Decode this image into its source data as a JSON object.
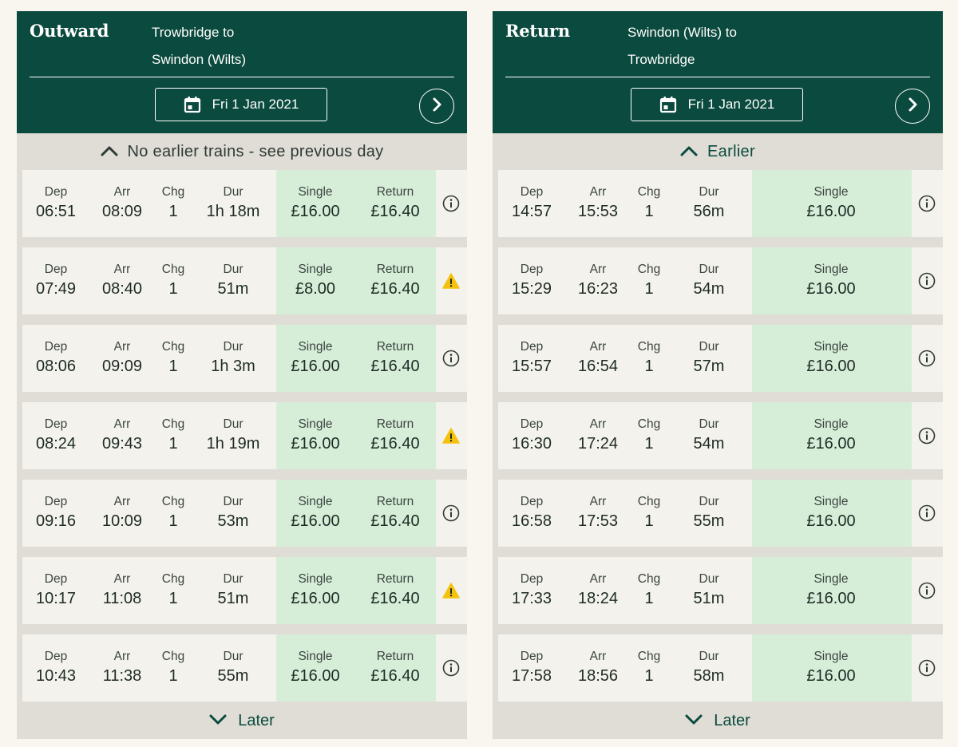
{
  "outward": {
    "direction": "Outward",
    "route_line1": "Trowbridge to",
    "route_line2": "Swindon (Wilts)",
    "date": "Fri 1 Jan 2021",
    "earlier_text": "No earlier trains - see previous day",
    "later_text": "Later",
    "journeys": [
      {
        "dep_label": "Dep",
        "dep": "06:51",
        "arr_label": "Arr",
        "arr": "08:09",
        "chg_label": "Chg",
        "chg": "1",
        "dur_label": "Dur",
        "dur": "1h 18m",
        "single_label": "Single",
        "single": "£16.00",
        "return_label": "Return",
        "return": "£16.40",
        "icon": "info-icon"
      },
      {
        "dep_label": "Dep",
        "dep": "07:49",
        "arr_label": "Arr",
        "arr": "08:40",
        "chg_label": "Chg",
        "chg": "1",
        "dur_label": "Dur",
        "dur": "51m",
        "single_label": "Single",
        "single": "£8.00",
        "return_label": "Return",
        "return": "£16.40",
        "icon": "warning-icon"
      },
      {
        "dep_label": "Dep",
        "dep": "08:06",
        "arr_label": "Arr",
        "arr": "09:09",
        "chg_label": "Chg",
        "chg": "1",
        "dur_label": "Dur",
        "dur": "1h 3m",
        "single_label": "Single",
        "single": "£16.00",
        "return_label": "Return",
        "return": "£16.40",
        "icon": "info-icon"
      },
      {
        "dep_label": "Dep",
        "dep": "08:24",
        "arr_label": "Arr",
        "arr": "09:43",
        "chg_label": "Chg",
        "chg": "1",
        "dur_label": "Dur",
        "dur": "1h 19m",
        "single_label": "Single",
        "single": "£16.00",
        "return_label": "Return",
        "return": "£16.40",
        "icon": "warning-icon"
      },
      {
        "dep_label": "Dep",
        "dep": "09:16",
        "arr_label": "Arr",
        "arr": "10:09",
        "chg_label": "Chg",
        "chg": "1",
        "dur_label": "Dur",
        "dur": "53m",
        "single_label": "Single",
        "single": "£16.00",
        "return_label": "Return",
        "return": "£16.40",
        "icon": "info-icon"
      },
      {
        "dep_label": "Dep",
        "dep": "10:17",
        "arr_label": "Arr",
        "arr": "11:08",
        "chg_label": "Chg",
        "chg": "1",
        "dur_label": "Dur",
        "dur": "51m",
        "single_label": "Single",
        "single": "£16.00",
        "return_label": "Return",
        "return": "£16.40",
        "icon": "warning-icon"
      },
      {
        "dep_label": "Dep",
        "dep": "10:43",
        "arr_label": "Arr",
        "arr": "11:38",
        "chg_label": "Chg",
        "chg": "1",
        "dur_label": "Dur",
        "dur": "55m",
        "single_label": "Single",
        "single": "£16.00",
        "return_label": "Return",
        "return": "£16.40",
        "icon": "info-icon"
      }
    ]
  },
  "return": {
    "direction": "Return",
    "route_line1": "Swindon (Wilts) to",
    "route_line2": "Trowbridge",
    "date": "Fri 1 Jan 2021",
    "earlier_text": "Earlier",
    "later_text": "Later",
    "journeys": [
      {
        "dep_label": "Dep",
        "dep": "14:57",
        "arr_label": "Arr",
        "arr": "15:53",
        "chg_label": "Chg",
        "chg": "1",
        "dur_label": "Dur",
        "dur": "56m",
        "single_label": "Single",
        "single": "£16.00",
        "icon": "info-icon"
      },
      {
        "dep_label": "Dep",
        "dep": "15:29",
        "arr_label": "Arr",
        "arr": "16:23",
        "chg_label": "Chg",
        "chg": "1",
        "dur_label": "Dur",
        "dur": "54m",
        "single_label": "Single",
        "single": "£16.00",
        "icon": "info-icon"
      },
      {
        "dep_label": "Dep",
        "dep": "15:57",
        "arr_label": "Arr",
        "arr": "16:54",
        "chg_label": "Chg",
        "chg": "1",
        "dur_label": "Dur",
        "dur": "57m",
        "single_label": "Single",
        "single": "£16.00",
        "icon": "info-icon"
      },
      {
        "dep_label": "Dep",
        "dep": "16:30",
        "arr_label": "Arr",
        "arr": "17:24",
        "chg_label": "Chg",
        "chg": "1",
        "dur_label": "Dur",
        "dur": "54m",
        "single_label": "Single",
        "single": "£16.00",
        "icon": "info-icon"
      },
      {
        "dep_label": "Dep",
        "dep": "16:58",
        "arr_label": "Arr",
        "arr": "17:53",
        "chg_label": "Chg",
        "chg": "1",
        "dur_label": "Dur",
        "dur": "55m",
        "single_label": "Single",
        "single": "£16.00",
        "icon": "info-icon"
      },
      {
        "dep_label": "Dep",
        "dep": "17:33",
        "arr_label": "Arr",
        "arr": "18:24",
        "chg_label": "Chg",
        "chg": "1",
        "dur_label": "Dur",
        "dur": "51m",
        "single_label": "Single",
        "single": "£16.00",
        "icon": "info-icon"
      },
      {
        "dep_label": "Dep",
        "dep": "17:58",
        "arr_label": "Arr",
        "arr": "18:56",
        "chg_label": "Chg",
        "chg": "1",
        "dur_label": "Dur",
        "dur": "58m",
        "single_label": "Single",
        "single": "£16.00",
        "icon": "info-icon"
      }
    ]
  },
  "colors": {
    "header_bg": "#0b4a3e",
    "panel_bg": "#dfddd6",
    "row_bg": "#f4f2ec",
    "fare_bg": "#d6eed8",
    "warning": "#f4c20d"
  }
}
